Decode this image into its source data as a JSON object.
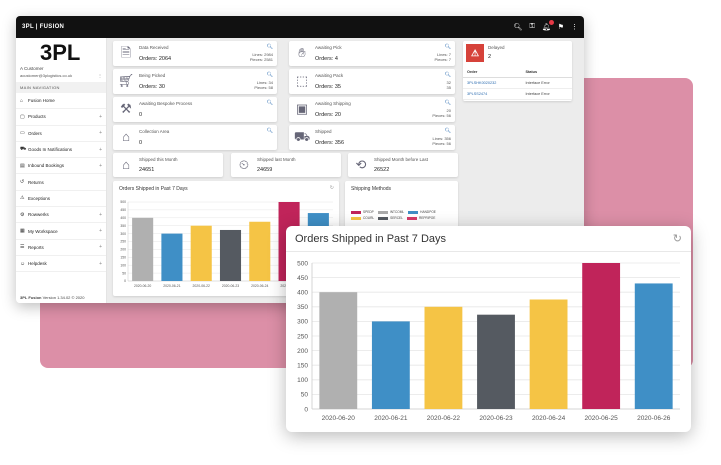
{
  "app": {
    "brand": "3PL | FUSION",
    "logo": "3PL"
  },
  "topbar_icons": [
    "search-icon",
    "key-icon",
    "bell-icon",
    "flag-icon",
    "more-vertical-icon"
  ],
  "user": {
    "customer": "A Customer",
    "email": "acustomer@3plogistics.co.uk"
  },
  "sidebar": {
    "heading": "MAIN NAVIGATION",
    "items": [
      {
        "label": "Fusion Home",
        "icon": "home-icon",
        "expandable": false
      },
      {
        "label": "Products",
        "icon": "box-icon",
        "expandable": true
      },
      {
        "label": "Orders",
        "icon": "folder-icon",
        "expandable": true
      },
      {
        "label": "Goods In Notifications",
        "icon": "truck-icon",
        "expandable": true
      },
      {
        "label": "Inbound Bookings",
        "icon": "dock-icon",
        "expandable": true
      },
      {
        "label": "Returns",
        "icon": "return-icon",
        "expandable": false
      },
      {
        "label": "Exceptions",
        "icon": "warning-icon",
        "expandable": false
      },
      {
        "label": "Rowwerks",
        "icon": "gear-icon",
        "expandable": true
      },
      {
        "label": "My Workspace",
        "icon": "briefcase-icon",
        "expandable": true
      },
      {
        "label": "Reports",
        "icon": "report-icon",
        "expandable": true
      },
      {
        "label": "Helpdesk",
        "icon": "users-icon",
        "expandable": true
      }
    ],
    "footer_brand": "3PL Fusion",
    "footer_version": "Version 1.34.02 © 2020"
  },
  "stats": {
    "data_received": {
      "title": "Data Received",
      "value": "Orders: 2064",
      "lines": "Lines: 2984",
      "pieces": "Pieces: 2581"
    },
    "being_picked": {
      "title": "Being Picked",
      "value": "Orders: 30",
      "lines": "Lines: 34",
      "pieces": "Pieces: 58"
    },
    "awaiting_bespoke": {
      "title": "Awaiting Bespoke Process",
      "value": "0"
    },
    "collection_area": {
      "title": "Collection Area",
      "value": "0"
    },
    "awaiting_pick": {
      "title": "Awaiting Pick",
      "value": "Orders: 4",
      "lines": "Lines: 7",
      "pieces": "Pieces: 7"
    },
    "awaiting_pack": {
      "title": "Awaiting Pack",
      "value": "Orders: 35",
      "lines": "32",
      "pieces": "35"
    },
    "awaiting_shipping": {
      "title": "Awaiting Shipping",
      "value": "Orders: 20",
      "lines": "20",
      "pieces": "Pieces: 56"
    },
    "shipped": {
      "title": "Shipped",
      "value": "Orders: 356",
      "lines": "Lines: 356",
      "pieces": "Pieces: 56"
    },
    "shipped_this_month": {
      "title": "Shipped this Month",
      "value": "24651"
    },
    "shipped_last_month": {
      "title": "Shipped last Month",
      "value": "24659"
    },
    "shipped_month_before": {
      "title": "Shipped Month before Last",
      "value": "26522"
    }
  },
  "delays": {
    "title": "Delayed",
    "value": "2",
    "columns": [
      "Order",
      "Status"
    ],
    "rows": [
      {
        "order": "3PLSHK0020232",
        "status": "Interface Error"
      },
      {
        "order": "3PLSS2474",
        "status": "Interface Error"
      }
    ]
  },
  "shipping_methods": {
    "title": "Shipping Methods",
    "legend": [
      {
        "label": "SPEDP",
        "color": "#c0245a"
      },
      {
        "label": "INTCOML",
        "color": "#aaaaaa"
      },
      {
        "label": "HANDPOE",
        "color": "#3f8fc6"
      },
      {
        "label": "COURL",
        "color": "#f5c445"
      },
      {
        "label": "SERCEL",
        "color": "#555a61"
      },
      {
        "label": "REPRIPOE",
        "color": "#d33c6a"
      }
    ]
  },
  "chart_data": {
    "type": "bar",
    "title": "Orders Shipped in Past 7 Days",
    "categories": [
      "2020-06-20",
      "2020-06-21",
      "2020-06-22",
      "2020-06-23",
      "2020-06-24",
      "2020-06-25",
      "2020-06-26"
    ],
    "values": [
      400,
      300,
      350,
      323,
      375,
      500,
      430
    ],
    "colors": [
      "#b0b0b0",
      "#3f8fc6",
      "#f5c445",
      "#555a61",
      "#f5c445",
      "#c0245a",
      "#3f8fc6"
    ],
    "ylim": [
      0,
      500
    ],
    "yticks": [
      0,
      50,
      100,
      150,
      200,
      250,
      300,
      350,
      400,
      450,
      500
    ],
    "grid": true
  }
}
